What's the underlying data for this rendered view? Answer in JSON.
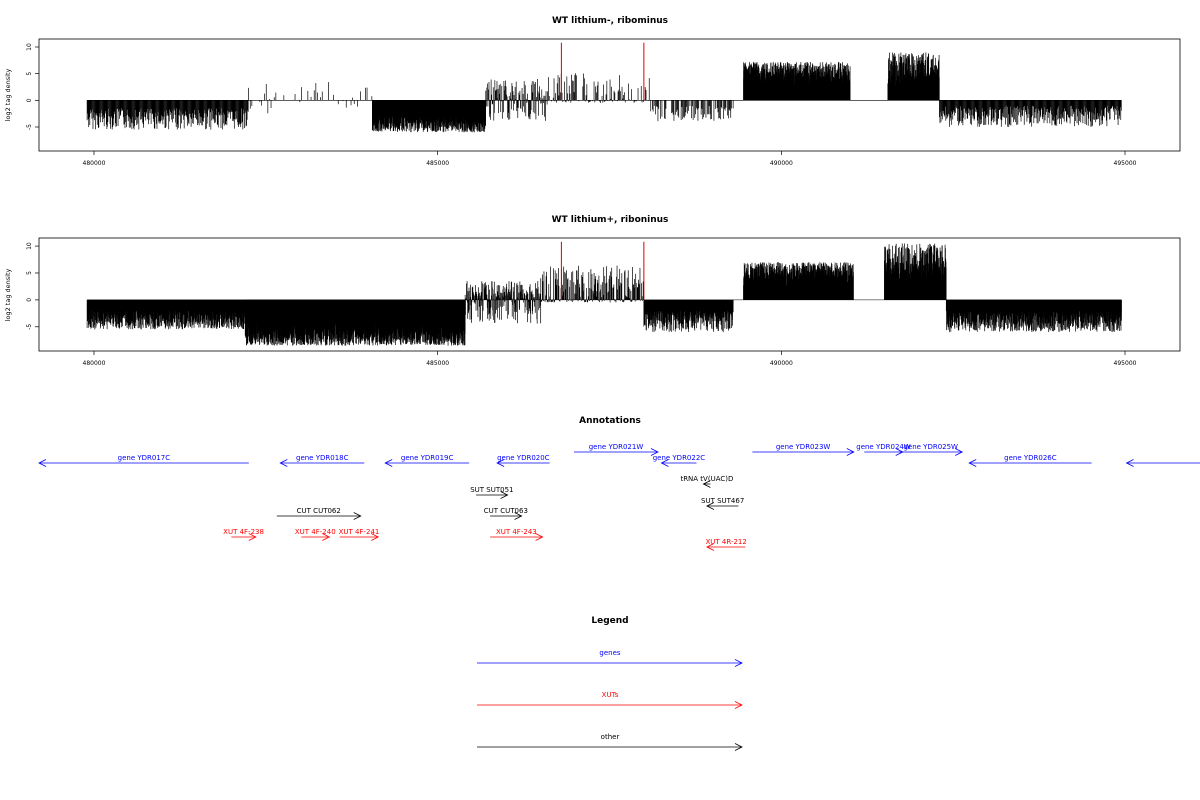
{
  "chart_data": [
    {
      "type": "bar",
      "title": "WT lithium-, ribominus",
      "ylabel": "log2 tag density",
      "xlim": [
        479200,
        495800
      ],
      "ylim": [
        -9.5,
        11.5
      ],
      "x_ticks": [
        "480000",
        "485000",
        "490000",
        "495000"
      ],
      "y_ticks": [
        "10",
        "5",
        "0",
        "-5"
      ],
      "x_range_covered": [
        479900,
        494950
      ],
      "baseline": 0,
      "highlight_lines": [
        {
          "x": 486800,
          "value": 10.8,
          "color": "#dd0000"
        },
        {
          "x": 488000,
          "value": 10.8,
          "color": "#dd0000"
        }
      ],
      "segments": [
        {
          "from": 479900,
          "to": 482250,
          "min": -5.5,
          "max": -1.5,
          "density": 3
        },
        {
          "from": 482250,
          "to": 484050,
          "min": -2.5,
          "max": 3.5,
          "density": 1
        },
        {
          "from": 484050,
          "to": 485700,
          "min": -6.0,
          "max": -2.5,
          "density": 10
        },
        {
          "from": 485700,
          "to": 486600,
          "min": -4.0,
          "max": 4.0,
          "density": 3
        },
        {
          "from": 486600,
          "to": 488100,
          "min": -0.5,
          "max": 5.2,
          "density": 2
        },
        {
          "from": 488100,
          "to": 489300,
          "min": -4.0,
          "max": -1.0,
          "density": 2
        },
        {
          "from": 489450,
          "to": 491000,
          "min": 2.0,
          "max": 7.2,
          "density": 12
        },
        {
          "from": 491000,
          "to": 491550,
          "min": 0,
          "max": 0,
          "density": 0
        },
        {
          "from": 491550,
          "to": 492300,
          "min": 2.5,
          "max": 9.0,
          "density": 8
        },
        {
          "from": 492300,
          "to": 494950,
          "min": -5.0,
          "max": -1.0,
          "density": 3
        }
      ]
    },
    {
      "type": "bar",
      "title": "WT lithium+, riboninus",
      "ylabel": "log2 tag density",
      "xlim": [
        479200,
        495800
      ],
      "ylim": [
        -9.5,
        11.5
      ],
      "x_ticks": [
        "480000",
        "485000",
        "490000",
        "495000"
      ],
      "y_ticks": [
        "10",
        "5",
        "0",
        "-5"
      ],
      "x_range_covered": [
        479900,
        494950
      ],
      "baseline": 0,
      "highlight_lines": [
        {
          "x": 486800,
          "value": 10.8,
          "color": "#dd0000"
        },
        {
          "x": 488000,
          "value": 10.8,
          "color": "#dd0000"
        }
      ],
      "segments": [
        {
          "from": 479900,
          "to": 482200,
          "min": -5.5,
          "max": -2.0,
          "density": 6
        },
        {
          "from": 482200,
          "to": 485400,
          "min": -8.5,
          "max": -3.5,
          "density": 14
        },
        {
          "from": 485400,
          "to": 486500,
          "min": -4.5,
          "max": 3.5,
          "density": 5
        },
        {
          "from": 486500,
          "to": 488000,
          "min": -0.5,
          "max": 6.5,
          "density": 3
        },
        {
          "from": 488000,
          "to": 489300,
          "min": -6.0,
          "max": -2.0,
          "density": 5
        },
        {
          "from": 489450,
          "to": 491050,
          "min": 2.0,
          "max": 7.0,
          "density": 12
        },
        {
          "from": 491050,
          "to": 491500,
          "min": 0,
          "max": 0,
          "density": 0
        },
        {
          "from": 491500,
          "to": 492400,
          "min": 2.5,
          "max": 10.5,
          "density": 9
        },
        {
          "from": 492400,
          "to": 494950,
          "min": -6.0,
          "max": -2.0,
          "density": 6
        }
      ]
    }
  ],
  "annotations": {
    "title": "Annotations",
    "colors": {
      "gene": "#0000ff",
      "xut": "#ff0000",
      "other": "#000000"
    },
    "features": [
      {
        "label": "gene YDR017C",
        "kind": "gene",
        "dir": "left",
        "from": 479200,
        "to": 482200,
        "track": 0
      },
      {
        "label": "gene YDR018C",
        "kind": "gene",
        "dir": "left",
        "from": 482650,
        "to": 483850,
        "track": 0
      },
      {
        "label": "gene YDR019C",
        "kind": "gene",
        "dir": "left",
        "from": 484150,
        "to": 485350,
        "track": 0
      },
      {
        "label": "gene YDR020C",
        "kind": "gene",
        "dir": "left",
        "from": 485750,
        "to": 486500,
        "track": 0
      },
      {
        "label": "gene YDR021W",
        "kind": "gene",
        "dir": "right",
        "from": 486850,
        "to": 488050,
        "track": -1
      },
      {
        "label": "gene YDR022C",
        "kind": "gene",
        "dir": "left",
        "from": 488100,
        "to": 488600,
        "track": 0
      },
      {
        "label": "gene YDR023W",
        "kind": "gene",
        "dir": "right",
        "from": 489400,
        "to": 490850,
        "track": -1
      },
      {
        "label": "gene YDR024W",
        "kind": "gene",
        "dir": "right",
        "from": 491000,
        "to": 491550,
        "track": -1
      },
      {
        "label": "gene YDR025W",
        "kind": "gene",
        "dir": "right",
        "from": 491500,
        "to": 492400,
        "track": -1
      },
      {
        "label": "gene YDR026C",
        "kind": "gene",
        "dir": "left",
        "from": 492500,
        "to": 494250,
        "track": 0
      },
      {
        "label": "",
        "kind": "gene",
        "dir": "left",
        "from": 494750,
        "to": 495800,
        "track": 0
      },
      {
        "label": "tRNA tV(UAC)D",
        "kind": "other",
        "dir": "left",
        "from": 488700,
        "to": 488800,
        "track": 1
      },
      {
        "label": "SUT SUT051",
        "kind": "other",
        "dir": "right",
        "from": 485450,
        "to": 485900,
        "track": 2
      },
      {
        "label": "SUT SUT467",
        "kind": "other",
        "dir": "left",
        "from": 488750,
        "to": 489200,
        "track": 2.5
      },
      {
        "label": "CUT CUT062",
        "kind": "other",
        "dir": "right",
        "from": 482600,
        "to": 483800,
        "track": 3
      },
      {
        "label": "CUT CUT063",
        "kind": "other",
        "dir": "right",
        "from": 485650,
        "to": 486100,
        "track": 3
      },
      {
        "label": "XUT 4F-238",
        "kind": "xut",
        "dir": "right",
        "from": 481950,
        "to": 482300,
        "track": 4
      },
      {
        "label": "XUT 4F-240",
        "kind": "xut",
        "dir": "right",
        "from": 482950,
        "to": 483350,
        "track": 4
      },
      {
        "label": "XUT 4F-241",
        "kind": "xut",
        "dir": "right",
        "from": 483500,
        "to": 484050,
        "track": 4
      },
      {
        "label": "XUT 4F-243",
        "kind": "xut",
        "dir": "right",
        "from": 485650,
        "to": 486400,
        "track": 4
      },
      {
        "label": "XUT 4R-212",
        "kind": "xut",
        "dir": "left",
        "from": 488750,
        "to": 489300,
        "track": 4.5
      }
    ]
  },
  "legend": {
    "title": "Legend",
    "items": [
      {
        "label": "genes",
        "color": "#0000ff"
      },
      {
        "label": "XUTs",
        "color": "#ff0000"
      },
      {
        "label": "other",
        "color": "#000000"
      }
    ]
  }
}
